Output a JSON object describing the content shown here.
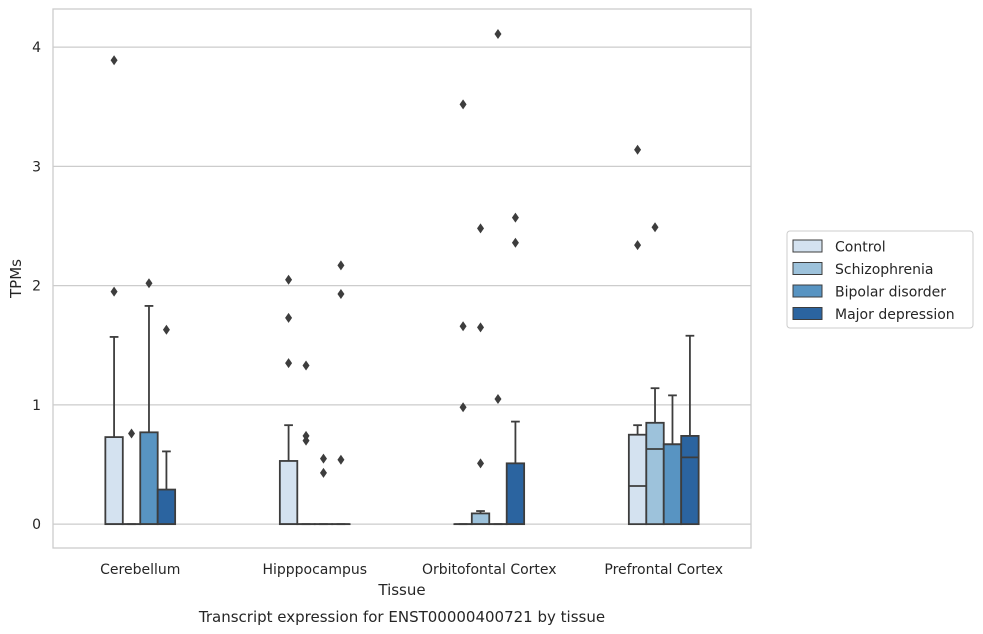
{
  "chart_data": {
    "type": "box",
    "title": "",
    "caption": "Transcript expression for ENST00000400721 by tissue",
    "xlabel": "Tissue",
    "ylabel": "TPMs",
    "ylim": [
      -0.2,
      4.32
    ],
    "yticks": [
      0,
      1,
      2,
      3,
      4
    ],
    "grid": "horizontal",
    "legend_position": "right",
    "categories": [
      "Cerebellum",
      "Hipppocampus",
      "Orbitofontal Cortex",
      "Prefrontal Cortex"
    ],
    "series": [
      {
        "name": "Control",
        "color": "#d4e2f0",
        "boxes": [
          {
            "q1": 0,
            "median": 0,
            "q3": 0.73,
            "whisker_low": 0,
            "whisker_high": 1.57,
            "outliers": [
              1.95,
              3.89
            ]
          },
          {
            "q1": 0,
            "median": 0,
            "q3": 0.53,
            "whisker_low": 0,
            "whisker_high": 0.83,
            "outliers": [
              1.35,
              1.73,
              2.05
            ]
          },
          {
            "q1": 0,
            "median": 0,
            "q3": 0,
            "whisker_low": 0,
            "whisker_high": 0,
            "outliers": [
              0.98,
              1.66,
              3.52
            ]
          },
          {
            "q1": 0,
            "median": 0.32,
            "q3": 0.75,
            "whisker_low": 0,
            "whisker_high": 0.83,
            "outliers": [
              2.34,
              3.14
            ]
          }
        ]
      },
      {
        "name": "Schizophrenia",
        "color": "#9dc2db",
        "boxes": [
          {
            "q1": 0,
            "median": 0,
            "q3": 0,
            "whisker_low": 0,
            "whisker_high": 0,
            "outliers": [
              0.76
            ]
          },
          {
            "q1": 0,
            "median": 0,
            "q3": 0,
            "whisker_low": 0,
            "whisker_high": 0,
            "outliers": [
              0.7,
              0.74,
              1.33
            ]
          },
          {
            "q1": 0,
            "median": 0,
            "q3": 0.09,
            "whisker_low": 0,
            "whisker_high": 0.11,
            "outliers": [
              0.51,
              1.65,
              2.48
            ]
          },
          {
            "q1": 0,
            "median": 0.63,
            "q3": 0.85,
            "whisker_low": 0,
            "whisker_high": 1.14,
            "outliers": [
              2.49
            ]
          }
        ]
      },
      {
        "name": "Bipolar disorder",
        "color": "#5894c2",
        "boxes": [
          {
            "q1": 0,
            "median": 0,
            "q3": 0.77,
            "whisker_low": 0,
            "whisker_high": 1.83,
            "outliers": [
              2.02
            ]
          },
          {
            "q1": 0,
            "median": 0,
            "q3": 0,
            "whisker_low": 0,
            "whisker_high": 0,
            "outliers": [
              0.43,
              0.55
            ]
          },
          {
            "q1": 0,
            "median": 0,
            "q3": 0,
            "whisker_low": 0,
            "whisker_high": 0,
            "outliers": [
              1.05,
              4.11
            ]
          },
          {
            "q1": 0,
            "median": 0.67,
            "q3": 0.67,
            "whisker_low": 0,
            "whisker_high": 1.08,
            "outliers": []
          }
        ]
      },
      {
        "name": "Major depression",
        "color": "#2b64a0",
        "boxes": [
          {
            "q1": 0,
            "median": 0,
            "q3": 0.29,
            "whisker_low": 0,
            "whisker_high": 0.61,
            "outliers": [
              1.63
            ]
          },
          {
            "q1": 0,
            "median": 0,
            "q3": 0,
            "whisker_low": 0,
            "whisker_high": 0,
            "outliers": [
              0.54,
              1.93,
              2.17
            ]
          },
          {
            "q1": 0,
            "median": 0,
            "q3": 0.51,
            "whisker_low": 0,
            "whisker_high": 0.86,
            "outliers": [
              2.36,
              2.57
            ]
          },
          {
            "q1": 0,
            "median": 0.56,
            "q3": 0.74,
            "whisker_low": 0,
            "whisker_high": 1.58,
            "outliers": []
          }
        ]
      }
    ]
  }
}
